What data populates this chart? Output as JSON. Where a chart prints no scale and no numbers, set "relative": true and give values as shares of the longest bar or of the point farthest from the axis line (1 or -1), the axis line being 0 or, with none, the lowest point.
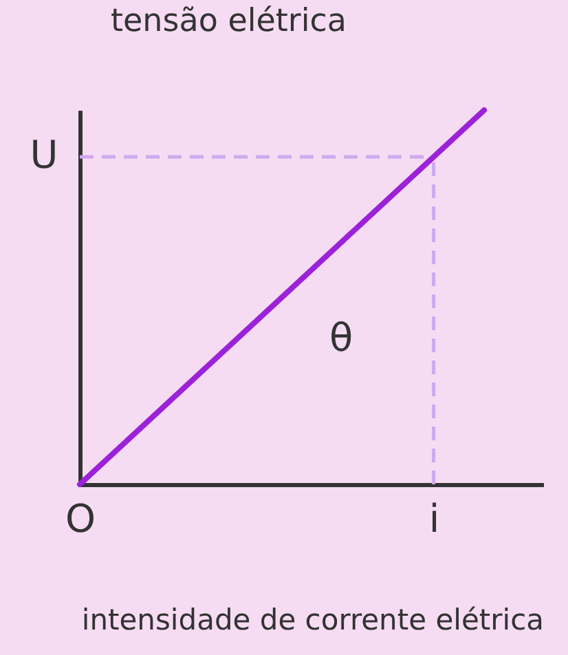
{
  "chart_data": {
    "type": "line",
    "ylabel": "tensão elétrica",
    "xlabel": "intensidade de corrente elétrica",
    "relative": true,
    "categories": [
      "O",
      null,
      null,
      null,
      null,
      null,
      null,
      "i",
      null
    ],
    "series": [
      {
        "color": "#9b22d8",
        "values": [
          0,
          0.125,
          0.25,
          0.375,
          0.5,
          0.625,
          0.75,
          0.875,
          1
        ]
      }
    ],
    "ref_lines": [
      {
        "axis": "y",
        "value": 0.875,
        "label": "U",
        "line_style": "dashed",
        "color": "#cfa8ee"
      },
      {
        "axis": "x",
        "value": "i",
        "line_style": "dashed",
        "color": "#cfa8ee"
      }
    ],
    "annotations": [
      "θ"
    ],
    "grid": false,
    "marker": "none",
    "line_style": "solid"
  }
}
